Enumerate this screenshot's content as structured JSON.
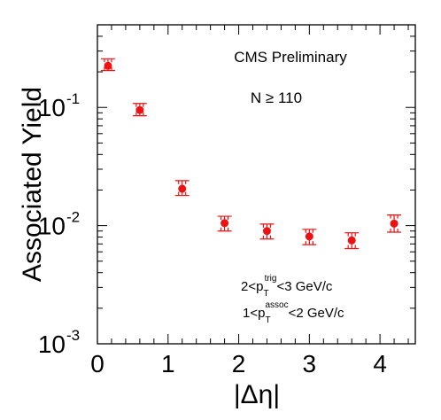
{
  "chart_data": {
    "type": "scatter",
    "title": "",
    "xlabel": "|Δη|",
    "ylabel": "Associated Yield",
    "xlim": [
      0,
      4.5
    ],
    "ylim": [
      0.001,
      0.5
    ],
    "yscale": "log",
    "grid": false,
    "marker_color": "#ee1111",
    "x_ticks": [
      "0",
      "1",
      "2",
      "3",
      "4"
    ],
    "y_ticks": [
      {
        "base": "10",
        "exp": "-3",
        "value": 0.001
      },
      {
        "base": "10",
        "exp": "-2",
        "value": 0.01
      },
      {
        "base": "10",
        "exp": "-1",
        "value": 0.1
      }
    ],
    "annotations": {
      "experiment": "CMS Preliminary",
      "multiplicity": "N ≥ 110",
      "trig_cut": {
        "pre": "2<p",
        "sup": "trig",
        "sub": "T",
        "post": "<3 GeV/c"
      },
      "assoc_cut": {
        "pre": "1<p",
        "sup": "assoc",
        "sub": "T",
        "post": "<2 GeV/c"
      }
    },
    "series": [
      {
        "x": [
          0.15,
          0.6,
          1.2,
          1.8,
          2.4,
          3.0,
          3.6,
          4.2
        ],
        "y": [
          0.225,
          0.095,
          0.0205,
          0.0105,
          0.009,
          0.0081,
          0.0075,
          0.0104
        ],
        "ylow": [
          0.205,
          0.085,
          0.018,
          0.009,
          0.0077,
          0.0069,
          0.0064,
          0.0088
        ],
        "yhigh": [
          0.258,
          0.108,
          0.024,
          0.012,
          0.0103,
          0.0093,
          0.0087,
          0.0123
        ],
        "xerr": [
          0.1,
          0.1,
          0.1,
          0.1,
          0.1,
          0.1,
          0.1,
          0.1
        ]
      }
    ]
  }
}
